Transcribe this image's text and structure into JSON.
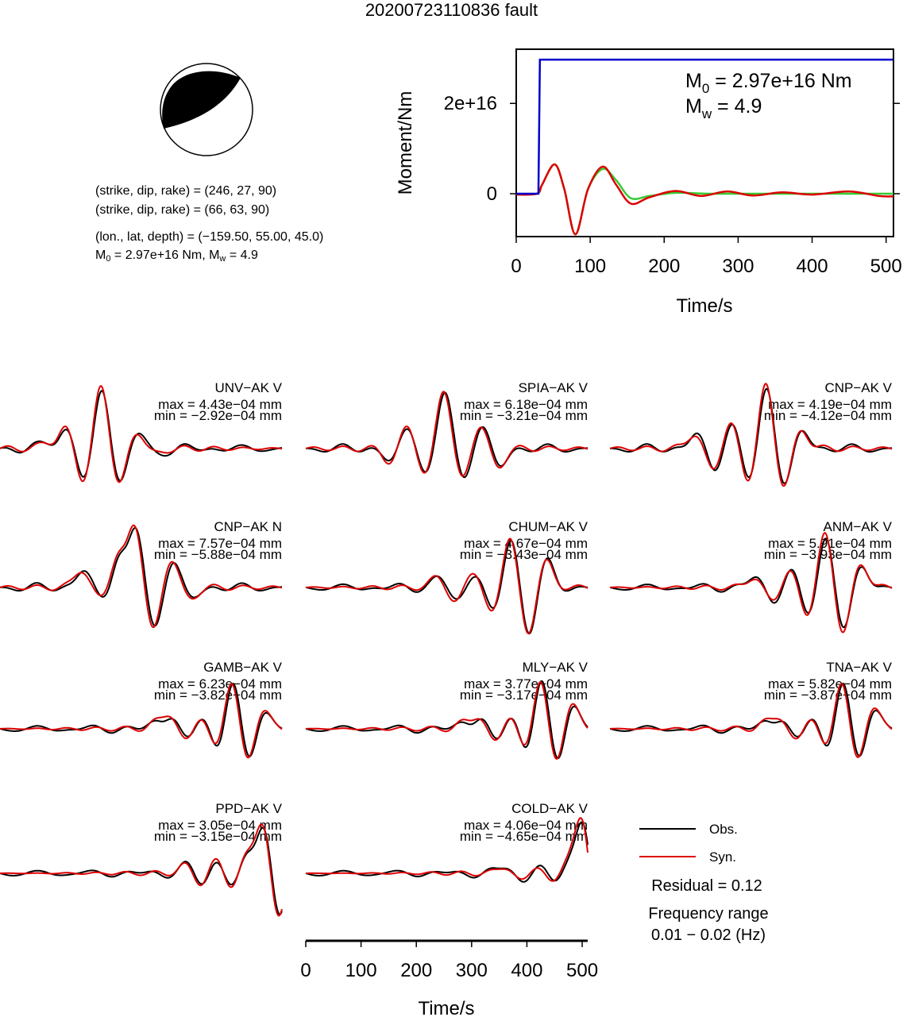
{
  "title": "20200723110836 fault",
  "mechanism": {
    "plane1": "(strike, dip, rake) = (246, 27, 90)",
    "plane2": "(strike, dip, rake) = (66, 63, 90)",
    "location": "(lon., lat, depth) = (−159.50, 55.00, 45.0)",
    "m0_label": "M",
    "m0_sub": "0",
    "m0_value": " = 2.97e+16 Nm, M",
    "mw_sub": "w",
    "mw_value": " = 4.9"
  },
  "chart_data": [
    {
      "type": "line",
      "name": "moment-rate",
      "ylabel": "Moment/Nm",
      "xlabel": "Time/s",
      "xlim": [
        0,
        510
      ],
      "ylim": [
        -9500000000000000.0,
        3.2e+16
      ],
      "xticks": [
        "0",
        "100",
        "200",
        "300",
        "400",
        "500"
      ],
      "yticks": [
        "0",
        "2e+16"
      ],
      "annotation": {
        "m0": {
          "main": "M",
          "sub": "0",
          "rest": " = 2.97e+16 Nm"
        },
        "mw": {
          "main": "M",
          "sub": "w",
          "rest": " = 4.9"
        }
      },
      "series": [
        {
          "color": "#0000cc",
          "x": [
            0,
            30,
            32,
            510
          ],
          "y": [
            0.0,
            0.0,
            2.97e+16,
            2.97e+16
          ]
        },
        {
          "color": "#33cc33",
          "x": [
            0,
            28,
            35,
            52,
            65,
            80,
            97,
            117,
            135,
            155,
            180,
            215,
            260,
            310,
            510
          ],
          "y": [
            0.0,
            0.0,
            2000000000000000.0,
            6500000000000000.0,
            1000000000000000.0,
            -9000000000000000.0,
            1000000000000000.0,
            5500000000000000.0,
            3000000000000000.0,
            -1000000000000000.0,
            -500000000000000.0,
            200000000000000.0,
            0.0,
            0.0,
            0.0
          ]
        },
        {
          "color": "#dd0000",
          "x": [
            0,
            28,
            35,
            52,
            65,
            80,
            97,
            117,
            135,
            155,
            180,
            215,
            250,
            285,
            320,
            360,
            400,
            450,
            490,
            510
          ],
          "y": [
            -200000000000000.0,
            0.0,
            2000000000000000.0,
            6500000000000000.0,
            1000000000000000.0,
            -9000000000000000.0,
            1000000000000000.0,
            6000000000000000.0,
            2000000000000000.0,
            -2200000000000000.0,
            -800000000000000.0,
            600000000000000.0,
            -500000000000000.0,
            500000000000000.0,
            -400000000000000.0,
            300000000000000.0,
            -200000000000000.0,
            500000000000000.0,
            -500000000000000.0,
            -600000000000000.0
          ]
        }
      ]
    }
  ],
  "waveforms": {
    "time_axis": {
      "xlabel": "Time/s",
      "xlim": [
        0,
        510
      ],
      "xticks": [
        "0",
        "100",
        "200",
        "300",
        "400",
        "500"
      ]
    },
    "stations": [
      {
        "name": "UNV−AK V",
        "max": "max = 4.43e−04 mm",
        "min": "min = −2.92e−04 mm",
        "center": 0.36,
        "pattern": [
          0.1,
          0.3,
          -0.5,
          1.0,
          -0.6,
          0.3,
          -0.1
        ],
        "amp": 1.0
      },
      {
        "name": "SPIA−AK V",
        "max": "max = 6.18e−04 mm",
        "min": "min = −3.21e−04 mm",
        "center": 0.49,
        "pattern": [
          -0.2,
          0.35,
          -0.45,
          1.0,
          -0.55,
          0.4,
          -0.3
        ],
        "amp": 1.0
      },
      {
        "name": "CNP−AK V",
        "max": "max = 4.19e−04 mm",
        "min": "min = −4.12e−04 mm",
        "center": 0.49,
        "pattern": [
          0.25,
          -0.35,
          0.4,
          -0.5,
          1.0,
          -0.6,
          0.3
        ],
        "amp": 1.0
      },
      {
        "name": "CNP−AK N",
        "max": "max = 7.57e−04 mm",
        "min": "min = −5.88e−04 mm",
        "center": 0.48,
        "pattern": [
          0.3,
          -0.2,
          0.5,
          1.0,
          -0.75,
          0.5,
          -0.2
        ],
        "amp": 1.0
      },
      {
        "name": "CHUM−AK V",
        "max": "max = 4.67e−04 mm",
        "min": "min = −3.43e−04 mm",
        "center": 0.66,
        "pattern": [
          0.2,
          -0.3,
          0.35,
          -0.55,
          1.0,
          -0.9,
          0.5
        ],
        "amp": 0.85
      },
      {
        "name": "ANM−AK V",
        "max": "max = 5.91e−04 mm",
        "min": "min = −3.93e−04 mm",
        "center": 0.7,
        "pattern": [
          0.2,
          -0.25,
          0.3,
          -0.5,
          1.0,
          -0.85,
          0.45
        ],
        "amp": 0.85
      },
      {
        "name": "GAMB−AK V",
        "max": "max = 6.23e−04 mm",
        "min": "min = −3.82e−04 mm",
        "center": 0.74,
        "pattern": [
          0.1,
          0.3,
          -0.3,
          0.3,
          -0.45,
          1.0,
          -0.7,
          0.4
        ],
        "amp": 0.85
      },
      {
        "name": "MLY−AK V",
        "max": "max = 3.77e−04 mm",
        "min": "min = −3.17e−04 mm",
        "center": 0.75,
        "pattern": [
          0.1,
          0.25,
          -0.3,
          0.3,
          -0.45,
          1.0,
          -0.7,
          0.5
        ],
        "amp": 0.85
      },
      {
        "name": "TNA−AK V",
        "max": "max = 5.82e−04 mm",
        "min": "min = −3.87e−04 mm",
        "center": 0.74,
        "pattern": [
          0.1,
          0.25,
          -0.3,
          0.3,
          -0.45,
          1.0,
          -0.7,
          0.45
        ],
        "amp": 0.85
      },
      {
        "name": "PPD−AK V",
        "max": "max = 3.05e−04 mm",
        "min": "min = −3.15e−04 mm",
        "center": 0.85,
        "pattern": [
          0.15,
          -0.2,
          0.25,
          -0.25,
          0.3,
          1.0,
          -0.95,
          0.5
        ],
        "amp": 0.85
      },
      {
        "name": "COLD−AK V",
        "max": "max = 4.06e−04 mm",
        "min": "min = −4.65e−04 mm",
        "center": 0.9,
        "pattern": [
          0.15,
          -0.2,
          0.2,
          -0.25,
          0.3,
          1.0,
          -1.0,
          0.5
        ],
        "amp": 0.85
      }
    ],
    "legend": {
      "obs": "Obs.",
      "syn": "Syn."
    },
    "residual": "Residual = 0.12",
    "freq_title": "Frequency range",
    "freq_value": "0.01 − 0.02 (Hz)"
  },
  "colors": {
    "obs": "#000000",
    "syn": "#dd0000",
    "moment": "#0000cc",
    "green": "#33cc33"
  }
}
